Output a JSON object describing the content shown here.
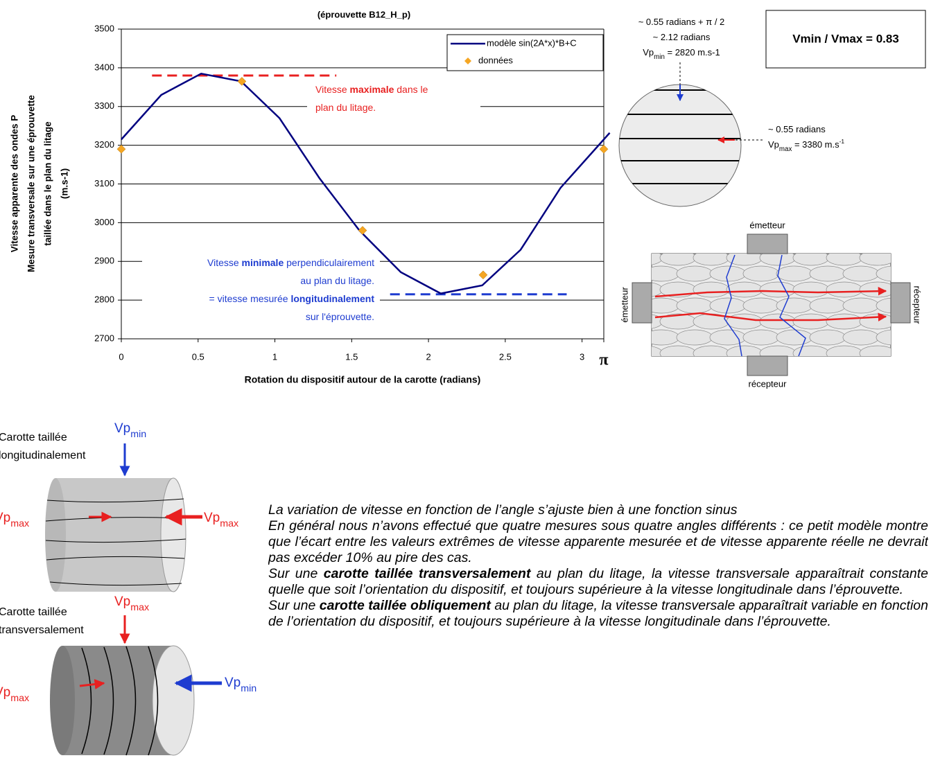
{
  "chart_data": {
    "type": "line",
    "title": "(éprouvette B12_H_p)",
    "y_label": [
      "Vitesse apparente des ondes P",
      "Mesure transversale sur une éprouvette",
      "taillée dans le plan du litage",
      "(m.s-1)"
    ],
    "x_label": "Rotation du dispositif autour de la carotte (radians)",
    "xlim": [
      0,
      3.1416
    ],
    "ylim": [
      2700,
      3500
    ],
    "xticks": [
      0,
      0.5,
      1,
      1.5,
      2,
      2.5,
      3,
      {
        "value": 3.1416,
        "label": "π"
      }
    ],
    "yticks": [
      2700,
      2800,
      2900,
      3000,
      3100,
      3200,
      3300,
      3400,
      3500
    ],
    "grid": "y",
    "legend": "upper right",
    "series": [
      {
        "name": "modèle sin(2A*x)*B+C",
        "color": "#000080",
        "x": [
          0,
          0.26,
          0.52,
          0.78,
          1.03,
          1.29,
          1.55,
          1.82,
          2.08,
          2.35,
          2.6,
          2.86,
          3.18
        ],
        "values": [
          3215,
          3330,
          3385,
          3365,
          3270,
          3115,
          2980,
          2872,
          2817,
          2838,
          2930,
          3090,
          3232
        ]
      },
      {
        "name": "données",
        "color": "#f5a623",
        "marker": "diamond",
        "x": [
          0,
          0.785,
          1.571,
          2.356,
          3.1416
        ],
        "values": [
          3190,
          3365,
          2980,
          2865,
          3190
        ]
      }
    ],
    "reference_lines": [
      {
        "color": "#e82020",
        "x": [
          0.2,
          1.4
        ],
        "value": 3380
      },
      {
        "color": "#1e3cd0",
        "x": [
          1.75,
          2.9
        ],
        "value": 2815
      }
    ],
    "annotations": [
      {
        "color": "#e82020",
        "align": "start",
        "lines": [
          [
            {
              "text": "Vitesse "
            },
            {
              "text": "maximale",
              "bold": true
            },
            {
              "text": " dans le"
            }
          ],
          [
            {
              "text": "plan du litage."
            }
          ]
        ]
      },
      {
        "color": "#1e3cd0",
        "align": "end",
        "lines": [
          [
            {
              "text": "Vitesse "
            },
            {
              "text": "minimale",
              "bold": true
            },
            {
              "text": " perpendiculairement"
            }
          ],
          [
            {
              "text": "au plan du litage."
            }
          ],
          [
            {
              "text": "= vitesse mesurée "
            },
            {
              "text": "longitudinalement",
              "bold": true
            }
          ],
          [
            {
              "text": "sur l'éprouvette."
            }
          ]
        ]
      }
    ]
  },
  "ratio_box": "Vmin / Vmax = 0.83",
  "section": {
    "min_note": [
      [
        {
          "text": "~ 0.55 radians + π / 2"
        }
      ],
      [
        {
          "text": "~ 2.12 radians"
        }
      ],
      [
        {
          "text": "Vp"
        },
        {
          "text": "min",
          "sub": true
        },
        {
          "text": " = 2820 m.s-1"
        }
      ]
    ],
    "max_note": [
      [
        {
          "text": "~ 0.55 radians"
        }
      ],
      [
        {
          "text": "Vp"
        },
        {
          "text": "max",
          "sub": true
        },
        {
          "text": " = 3380 m.s"
        },
        {
          "text": "-1",
          "sup": true
        }
      ]
    ]
  },
  "sample": {
    "top": "émetteur",
    "bottom": "récepteur",
    "left": "émetteur",
    "right": "récepteur"
  },
  "core_long": {
    "label": [
      "Carotte taillée",
      "longitudinalement"
    ],
    "top": [
      {
        "text": "Vp"
      },
      {
        "text": "min",
        "sub": true
      }
    ],
    "left": [
      {
        "text": "Vp"
      },
      {
        "text": "max",
        "sub": true
      }
    ],
    "right": [
      {
        "text": "Vp"
      },
      {
        "text": "max",
        "sub": true
      }
    ]
  },
  "core_trans": {
    "label": [
      "Carotte taillée",
      "transversalement"
    ],
    "top": [
      {
        "text": "Vp"
      },
      {
        "text": "max",
        "sub": true
      }
    ],
    "left": [
      {
        "text": "Vp"
      },
      {
        "text": "max",
        "sub": true
      }
    ],
    "right": [
      {
        "text": "Vp"
      },
      {
        "text": "min",
        "sub": true
      }
    ]
  },
  "paragraphs": [
    [
      {
        "text": "La variation de vitesse en fonction de l’angle s’ajuste bien à une fonction sinus"
      }
    ],
    [
      {
        "text": "En général nous n’avons effectué que quatre mesures sous quatre angles différents : ce petit modèle montre que l’écart entre les valeurs extrêmes de vitesse apparente mesurée et de vitesse apparente réelle ne devrait pas excéder 10% au pire des cas."
      }
    ],
    [
      {
        "text": "Sur une "
      },
      {
        "text": "carotte taillée transversalement",
        "bold": true
      },
      {
        "text": " au plan du litage, la vitesse transversale apparaîtrait constante quelle que soit l’orientation du dispositif, et toujours supérieure à la vitesse longitudinale dans l’éprouvette."
      }
    ],
    [
      {
        "text": "Sur une "
      },
      {
        "text": "carotte taillée obliquement",
        "bold": true
      },
      {
        "text": " au plan du litage, la vitesse transversale apparaîtrait variable en fonction de l’orientation du dispositif, et toujours supérieure à la vitesse longitudinale dans l’éprouvette."
      }
    ]
  ]
}
